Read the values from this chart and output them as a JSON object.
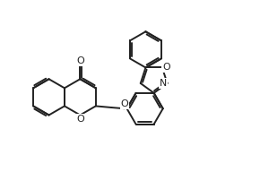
{
  "bg_color": "#ffffff",
  "line_color": "#222222",
  "line_width": 1.4,
  "figsize": [
    2.9,
    2.11
  ],
  "dpi": 100,
  "xlim": [
    0,
    10.0
  ],
  "ylim": [
    0,
    7.3
  ]
}
